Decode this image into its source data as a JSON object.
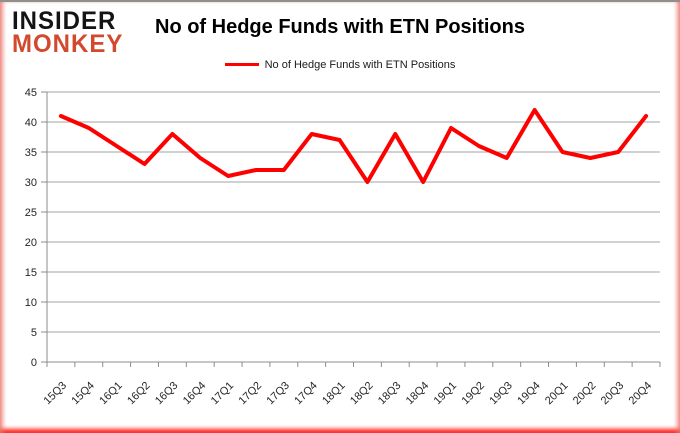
{
  "logo": {
    "line1": "INSIDER",
    "line2": "MONKEY"
  },
  "title": "No of Hedge Funds with ETN Positions",
  "legend": {
    "label": "No of Hedge Funds with ETN Positions"
  },
  "colors": {
    "line": "#ff0000",
    "grid": "#a3a3a3",
    "axis": "#8c8c8c",
    "text": "#262626",
    "logo_black": "#141414",
    "logo_red": "#d14a2e",
    "frame_top": "#8f8f8f",
    "frame_glow": "#ff0000"
  },
  "chart_data": {
    "type": "line",
    "title": "No of Hedge Funds with ETN Positions",
    "categories": [
      "15Q3",
      "15Q4",
      "16Q1",
      "16Q2",
      "16Q3",
      "16Q4",
      "17Q1",
      "17Q2",
      "17Q3",
      "17Q4",
      "18Q1",
      "18Q2",
      "18Q3",
      "18Q4",
      "19Q1",
      "19Q2",
      "19Q3",
      "19Q4",
      "20Q1",
      "20Q2",
      "20Q3",
      "20Q4"
    ],
    "series": [
      {
        "name": "No of Hedge Funds with ETN Positions",
        "color": "#ff0000",
        "values": [
          41,
          39,
          36,
          33,
          38,
          34,
          31,
          32,
          32,
          38,
          37,
          30,
          38,
          30,
          39,
          36,
          34,
          42,
          35,
          34,
          35,
          41
        ]
      }
    ],
    "xlabel": "",
    "ylabel": "",
    "ylim": [
      0,
      45
    ],
    "ytick_step": 5,
    "grid": true,
    "legend_position": "top-center"
  }
}
